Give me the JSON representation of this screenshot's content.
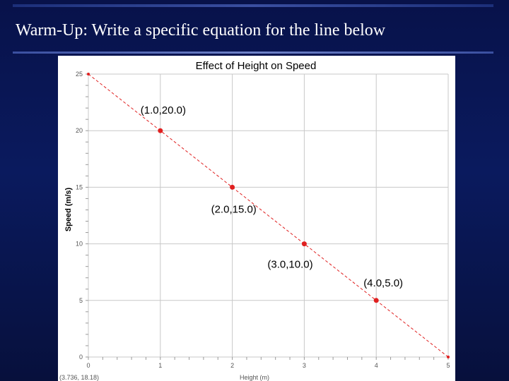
{
  "slide": {
    "title": "Warm-Up: Write a specific equation for the line below"
  },
  "chart_data": {
    "type": "scatter",
    "title": "Effect of Height on Speed",
    "xlabel": "Height (m)",
    "ylabel": "Speed (m/s)",
    "xlim": [
      0,
      5
    ],
    "ylim": [
      0,
      25
    ],
    "x_ticks": [
      "0",
      "1",
      "2",
      "3",
      "4",
      "5"
    ],
    "y_ticks": [
      "0",
      "5",
      "10",
      "15",
      "20",
      "25"
    ],
    "grid": true,
    "points": [
      {
        "x": 1.0,
        "y": 20.0,
        "label": "(1.0,20.0)"
      },
      {
        "x": 2.0,
        "y": 15.0,
        "label": "(2.0,15.0)"
      },
      {
        "x": 3.0,
        "y": 10.0,
        "label": "(3.0,10.0)"
      },
      {
        "x": 4.0,
        "y": 5.0,
        "label": "(4.0,5.0)"
      }
    ],
    "fit_line": {
      "x": [
        0,
        5
      ],
      "y": [
        25,
        0
      ],
      "style": "dashed"
    },
    "cursor_readout": "(3.736, 18.18)",
    "colors": {
      "points": "#e02020",
      "line": "#e02020",
      "grid": "#c8c8c8",
      "axis_text": "#555555"
    }
  }
}
